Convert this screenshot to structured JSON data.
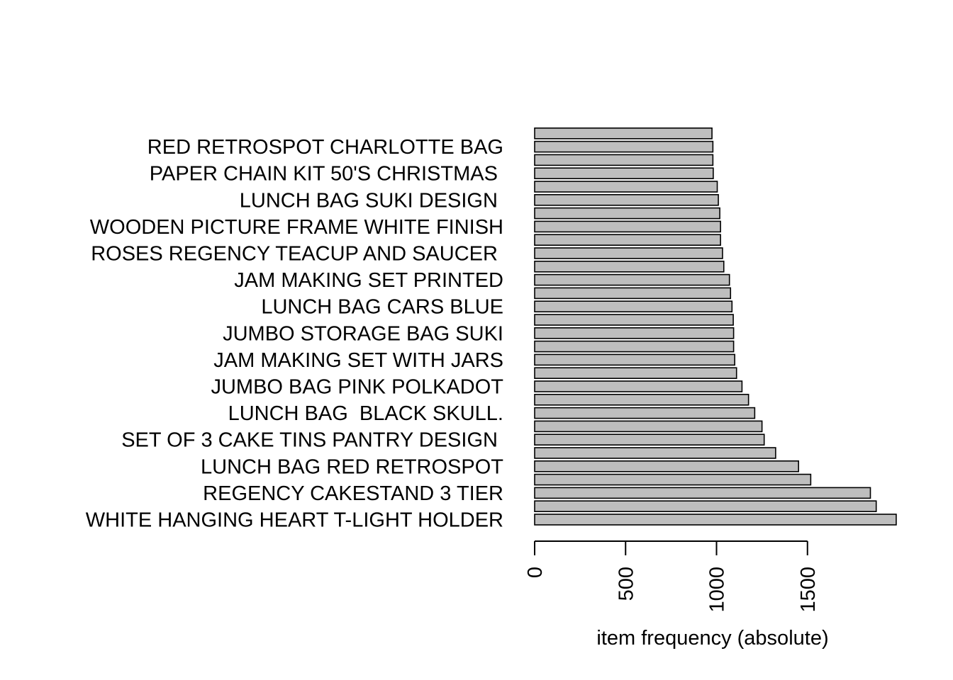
{
  "chart_data": {
    "type": "bar",
    "orientation": "horizontal",
    "xlabel": "item frequency (absolute)",
    "xticks": [
      0,
      500,
      1000,
      1500
    ],
    "xlim": [
      0,
      2000
    ],
    "categories": [
      "WHITE HANGING HEART T-LIGHT HOLDER",
      "",
      "REGENCY CAKESTAND 3 TIER",
      "",
      "LUNCH BAG RED RETROSPOT",
      "",
      "SET OF 3 CAKE TINS PANTRY DESIGN ",
      "",
      "LUNCH BAG  BLACK SKULL.",
      "",
      "JUMBO BAG PINK POLKADOT",
      "",
      "JAM MAKING SET WITH JARS",
      "",
      "JUMBO STORAGE BAG SUKI",
      "",
      "LUNCH BAG CARS BLUE",
      "",
      "JAM MAKING SET PRINTED",
      "",
      "ROSES REGENCY TEACUP AND SAUCER ",
      "",
      "WOODEN PICTURE FRAME WHITE FINISH",
      "",
      "LUNCH BAG SUKI DESIGN ",
      "",
      "PAPER CHAIN KIT 50'S CHRISTMAS ",
      "",
      "RED RETROSPOT CHARLOTTE BAG",
      ""
    ],
    "values": [
      1988,
      1878,
      1846,
      1518,
      1451,
      1325,
      1262,
      1250,
      1210,
      1176,
      1140,
      1110,
      1100,
      1094,
      1094,
      1092,
      1085,
      1077,
      1071,
      1040,
      1033,
      1022,
      1022,
      1018,
      1010,
      1004,
      982,
      980,
      980,
      975
    ],
    "bar_color": "#bebebe",
    "edge_color": "#000000"
  }
}
